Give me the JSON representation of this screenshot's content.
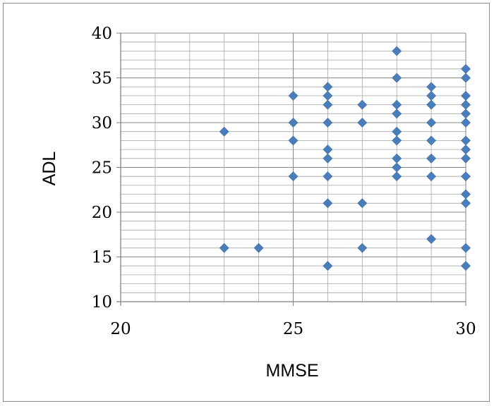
{
  "chart_data": {
    "type": "scatter",
    "title": "",
    "xlabel": "MMSE",
    "ylabel": "ADL",
    "xlim": [
      20,
      30
    ],
    "ylim": [
      10,
      40
    ],
    "x_ticks": [
      "20",
      "25",
      "30"
    ],
    "y_ticks": [
      "10",
      "15",
      "20",
      "25",
      "30",
      "35",
      "40"
    ],
    "grid": true,
    "legend": "none",
    "marker": "diamond",
    "marker_color": "#4a7ebb",
    "series": [
      {
        "points": [
          [
            23,
            29
          ],
          [
            23,
            16
          ],
          [
            24,
            16
          ],
          [
            25,
            33
          ],
          [
            25,
            30
          ],
          [
            25,
            28
          ],
          [
            25,
            24
          ],
          [
            26,
            34
          ],
          [
            26,
            33
          ],
          [
            26,
            32
          ],
          [
            26,
            30
          ],
          [
            26,
            27
          ],
          [
            26,
            26
          ],
          [
            26,
            24
          ],
          [
            26,
            21
          ],
          [
            26,
            14
          ],
          [
            27,
            32
          ],
          [
            27,
            30
          ],
          [
            27,
            21
          ],
          [
            27,
            16
          ],
          [
            28,
            38
          ],
          [
            28,
            35
          ],
          [
            28,
            32
          ],
          [
            28,
            31
          ],
          [
            28,
            29
          ],
          [
            28,
            28
          ],
          [
            28,
            26
          ],
          [
            28,
            25
          ],
          [
            28,
            24
          ],
          [
            29,
            34
          ],
          [
            29,
            33
          ],
          [
            29,
            32
          ],
          [
            29,
            30
          ],
          [
            29,
            28
          ],
          [
            29,
            26
          ],
          [
            29,
            24
          ],
          [
            29,
            17
          ],
          [
            30,
            36
          ],
          [
            30,
            35
          ],
          [
            30,
            33
          ],
          [
            30,
            32
          ],
          [
            30,
            31
          ],
          [
            30,
            30
          ],
          [
            30,
            28
          ],
          [
            30,
            27
          ],
          [
            30,
            26
          ],
          [
            30,
            24
          ],
          [
            30,
            22
          ],
          [
            30,
            21
          ],
          [
            30,
            16
          ],
          [
            30,
            14
          ]
        ]
      }
    ]
  }
}
